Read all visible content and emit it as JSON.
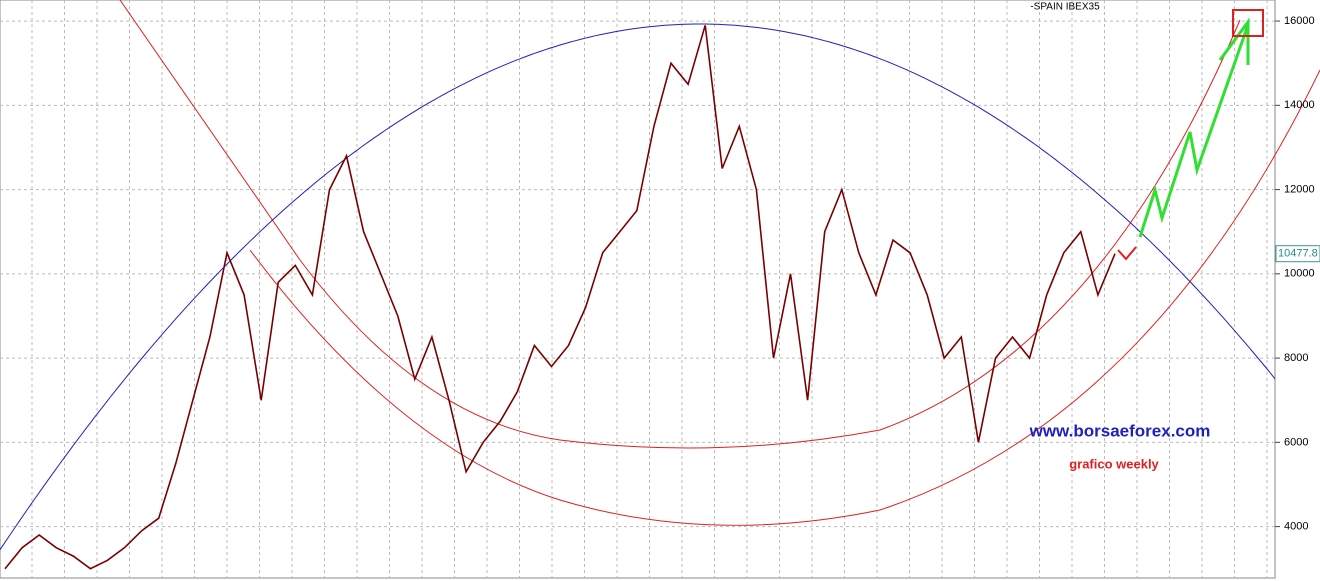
{
  "chart_data": {
    "type": "line",
    "title": "-SPAIN IBEX35",
    "values": [
      3000,
      3500,
      3800,
      3500,
      3300,
      3000,
      3200,
      3500,
      3900,
      4200,
      5500,
      7000,
      8500,
      10500,
      9500,
      7000,
      9800,
      10200,
      9500,
      12000,
      12800,
      11000,
      10000,
      9000,
      7500,
      8500,
      7000,
      5300,
      6000,
      6500,
      7200,
      8300,
      7800,
      8300,
      9200,
      10500,
      11000,
      11500,
      13500,
      15000,
      14500,
      15900,
      12500,
      13500,
      12000,
      8000,
      10000,
      7000,
      11000,
      12000,
      10500,
      9500,
      10800,
      10500,
      9500,
      8000,
      8500,
      6000,
      8000,
      8500,
      8000,
      9500,
      10500,
      11000,
      9500,
      10477.8
    ],
    "color": "#7a0000",
    "ylim": [
      2780,
      16500
    ],
    "yticks": [
      4000,
      6000,
      8000,
      10000,
      12000,
      14000,
      16000
    ],
    "grid": true,
    "last_price": 10477.8,
    "annotations": [
      "www.borsaeforex.com",
      "grafico weekly"
    ]
  }
}
